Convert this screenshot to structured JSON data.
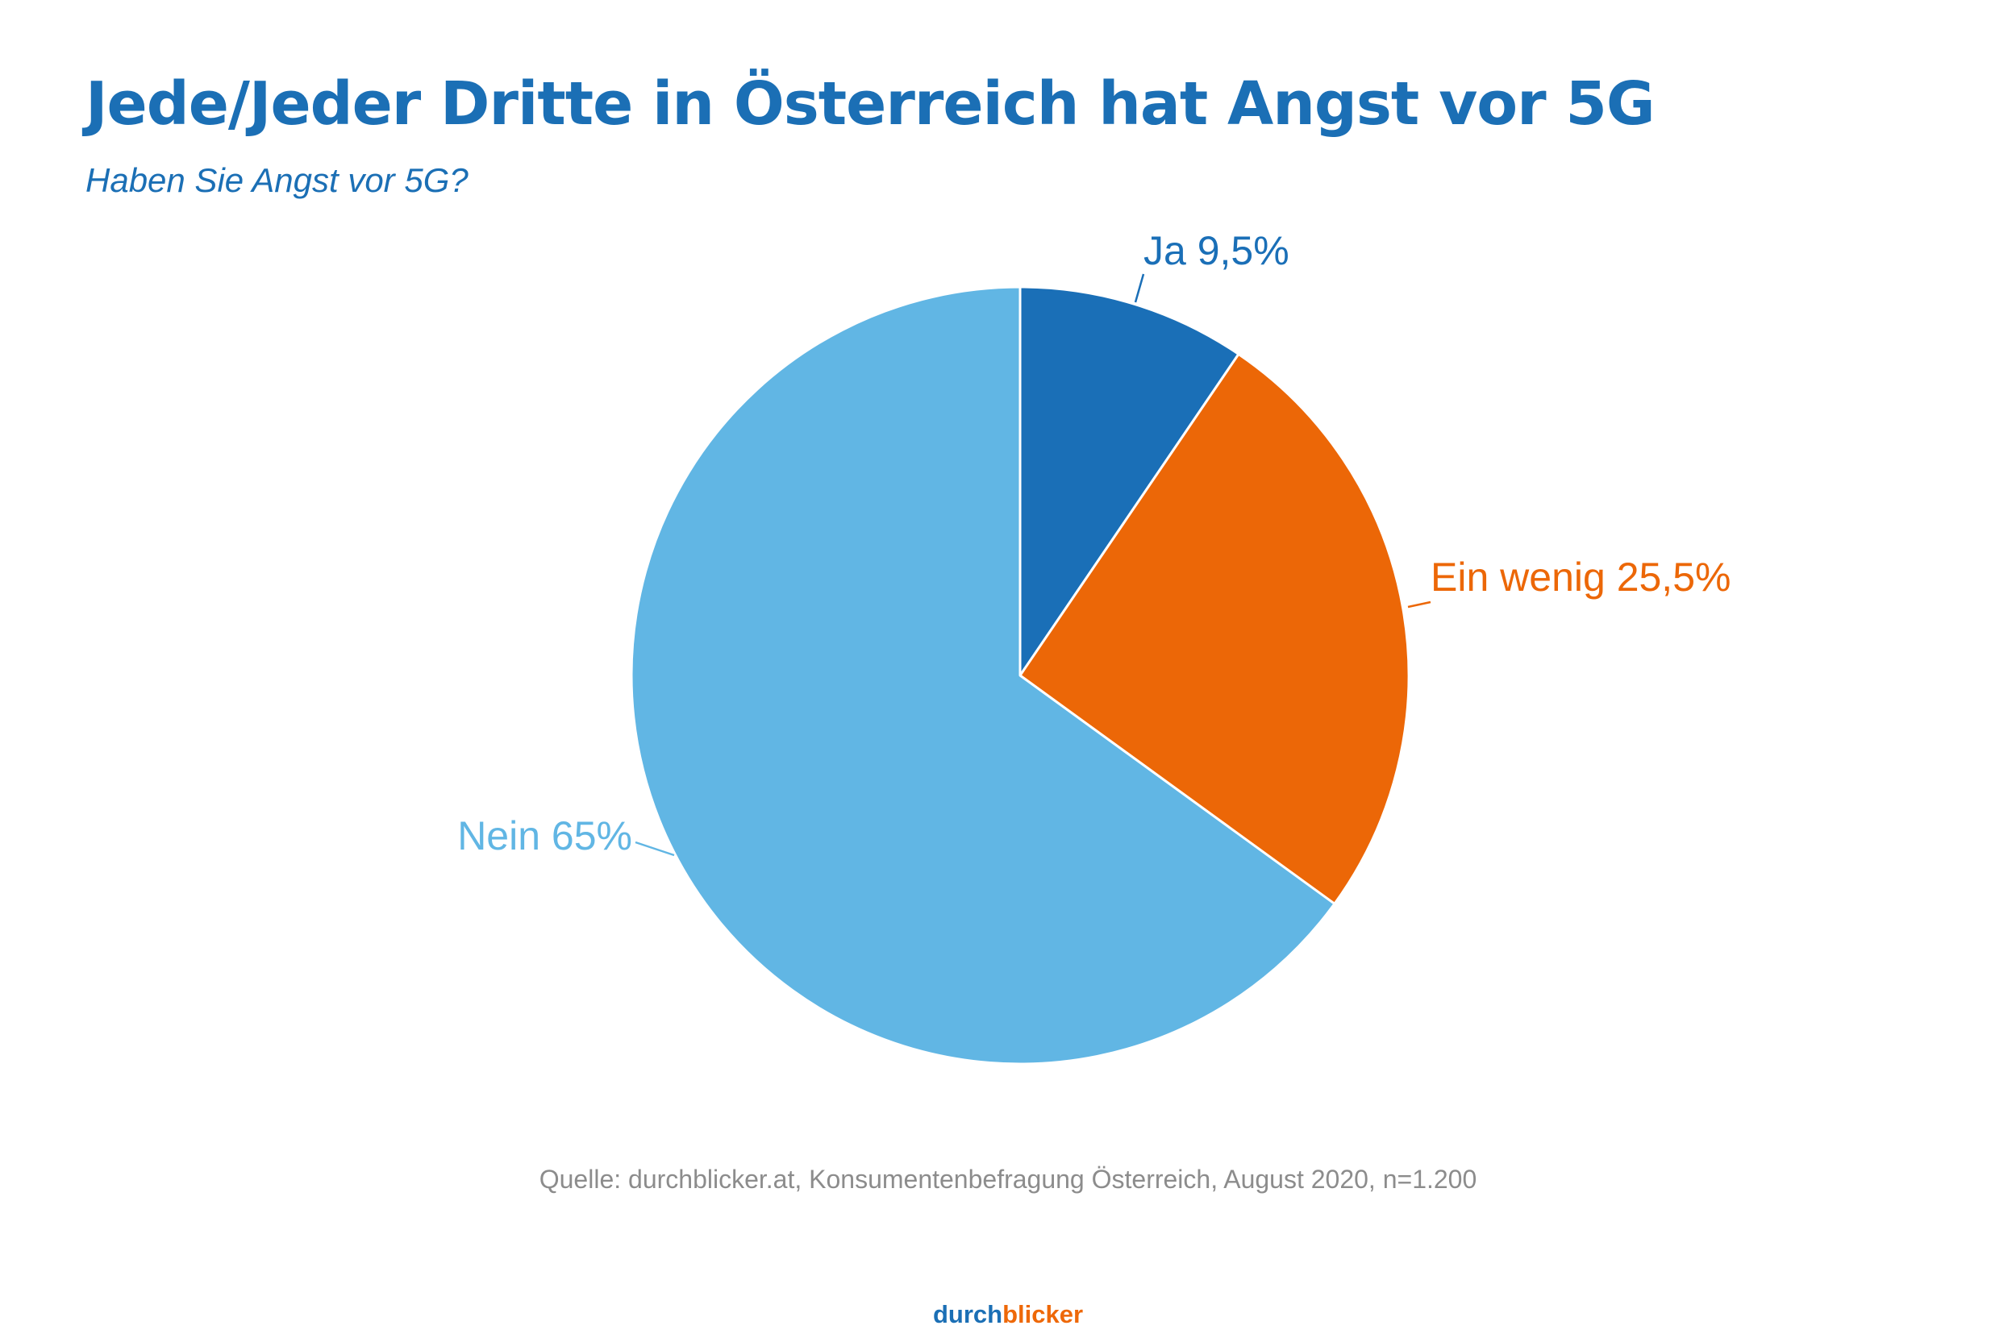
{
  "title": "Jede/Jeder Dritte in Österreich hat Angst vor 5G",
  "subtitle": "Haben Sie Angst vor 5G?",
  "source": "Quelle: durchblicker.at, Konsumentenbefragung Österreich, August 2020, n=1.200",
  "logo": {
    "part1": "durch",
    "part2": "blicker"
  },
  "colors": {
    "title": "#1b6fb5",
    "source": "#8c8c8c",
    "logo_part1": "#1b6fb5",
    "logo_part2": "#ee6808",
    "slice_border": "#ffffff"
  },
  "chart_data": {
    "type": "pie",
    "slices": [
      {
        "category": "Ja",
        "label": "Ja 9,5%",
        "value": 9.5,
        "color": "#1a6fb7"
      },
      {
        "category": "Ein wenig",
        "label": "Ein wenig 25,5%",
        "value": 25.5,
        "color": "#ec6707"
      },
      {
        "category": "Nein",
        "label": "Nein 65%",
        "value": 65,
        "color": "#61b6e4"
      }
    ],
    "start_angle": "12 o'clock",
    "direction": "clockwise"
  }
}
